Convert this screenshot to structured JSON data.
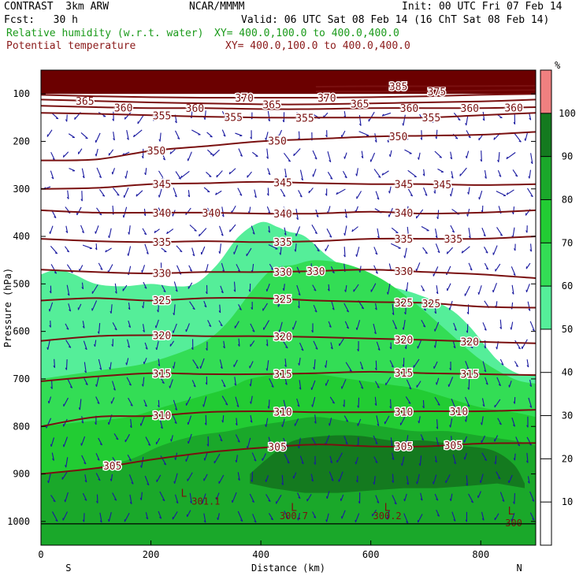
{
  "header": {
    "model": "CONTRAST  3km ARW",
    "org": "NCAR/MMMM",
    "init": "Init: 00 UTC Fri 07 Feb 14",
    "fcst": "Fcst:   30 h",
    "valid": "Valid: 06 UTC Sat 08 Feb 14 (16 ChT Sat 08 Feb 14)",
    "field1": "Relative humidity (w.r.t. water)",
    "xy1": "XY= 400.0,100.0 to 400.0,400.0",
    "field2": "Potential temperature",
    "xy2": "XY= 400.0,100.0 to 400.0,400.0"
  },
  "colors": {
    "rh_50": "#55ee99",
    "rh_60": "#33dd55",
    "rh_70": "#22cc33",
    "rh_80": "#1aa82a",
    "rh_90": "#147a1f",
    "rh_100": "#f08080",
    "theta": "#7a1010",
    "wind": "#1a1aa0"
  },
  "chart_data": {
    "type": "cross-section",
    "xlabel": "Distance (km)",
    "ylabel": "Pressure (hPa)",
    "xlim": [
      0,
      900
    ],
    "ylim": [
      1050,
      50
    ],
    "x_ticks": [
      0,
      200,
      400,
      600,
      800
    ],
    "y_ticks": [
      100,
      200,
      300,
      400,
      500,
      600,
      700,
      800,
      900,
      1000
    ],
    "x_end_labels": {
      "left": "S",
      "right": "N"
    },
    "colorbar": {
      "unit": "%",
      "ticks": [
        10,
        20,
        30,
        40,
        50,
        60,
        70,
        80,
        90,
        100
      ],
      "filled_levels": [
        {
          "from": 50,
          "to": 60,
          "color_key": "rh_50"
        },
        {
          "from": 60,
          "to": 70,
          "color_key": "rh_60"
        },
        {
          "from": 70,
          "to": 80,
          "color_key": "rh_70"
        },
        {
          "from": 80,
          "to": 90,
          "color_key": "rh_80"
        },
        {
          "from": 90,
          "to": 100,
          "color_key": "rh_90"
        },
        {
          "from": 100,
          "to": 110,
          "color_key": "rh_100"
        }
      ]
    },
    "rh_boundary": {
      "rh50_top": [
        [
          0,
          480
        ],
        [
          30,
          470
        ],
        [
          60,
          480
        ],
        [
          100,
          500
        ],
        [
          150,
          505
        ],
        [
          200,
          500
        ],
        [
          240,
          505
        ],
        [
          280,
          500
        ],
        [
          320,
          460
        ],
        [
          360,
          400
        ],
        [
          400,
          370
        ],
        [
          430,
          380
        ],
        [
          450,
          390
        ],
        [
          480,
          400
        ],
        [
          520,
          440
        ],
        [
          560,
          470
        ],
        [
          620,
          500
        ],
        [
          680,
          520
        ],
        [
          740,
          550
        ],
        [
          780,
          590
        ],
        [
          830,
          660
        ],
        [
          870,
          690
        ],
        [
          900,
          690
        ]
      ],
      "rh60_top": [
        [
          0,
          700
        ],
        [
          60,
          690
        ],
        [
          120,
          680
        ],
        [
          180,
          670
        ],
        [
          240,
          650
        ],
        [
          300,
          620
        ],
        [
          340,
          580
        ],
        [
          380,
          520
        ],
        [
          420,
          470
        ],
        [
          460,
          460
        ],
        [
          500,
          450
        ],
        [
          560,
          460
        ],
        [
          620,
          490
        ],
        [
          680,
          540
        ],
        [
          740,
          600
        ],
        [
          800,
          660
        ],
        [
          860,
          700
        ],
        [
          900,
          710
        ]
      ],
      "rh70_top": [
        [
          0,
          800
        ],
        [
          80,
          790
        ],
        [
          160,
          780
        ],
        [
          220,
          760
        ],
        [
          280,
          740
        ],
        [
          340,
          720
        ],
        [
          380,
          700
        ],
        [
          440,
          690
        ],
        [
          500,
          690
        ],
        [
          560,
          700
        ],
        [
          620,
          710
        ],
        [
          680,
          720
        ],
        [
          740,
          740
        ],
        [
          800,
          760
        ],
        [
          860,
          770
        ],
        [
          900,
          780
        ]
      ],
      "rh80_top": [
        [
          0,
          900
        ],
        [
          80,
          890
        ],
        [
          160,
          870
        ],
        [
          220,
          840
        ],
        [
          280,
          820
        ],
        [
          340,
          810
        ],
        [
          380,
          800
        ],
        [
          440,
          790
        ],
        [
          500,
          780
        ],
        [
          560,
          790
        ],
        [
          620,
          800
        ],
        [
          680,
          810
        ],
        [
          740,
          810
        ],
        [
          800,
          820
        ],
        [
          860,
          830
        ],
        [
          900,
          840
        ]
      ],
      "rh90_top": [
        [
          380,
          900
        ],
        [
          420,
          860
        ],
        [
          460,
          830
        ],
        [
          520,
          820
        ],
        [
          580,
          820
        ],
        [
          640,
          830
        ],
        [
          700,
          830
        ],
        [
          760,
          840
        ],
        [
          820,
          850
        ],
        [
          860,
          880
        ],
        [
          880,
          920
        ]
      ],
      "rh90_bottom": [
        [
          380,
          920
        ],
        [
          420,
          930
        ],
        [
          480,
          940
        ],
        [
          540,
          940
        ],
        [
          600,
          935
        ],
        [
          660,
          930
        ],
        [
          720,
          930
        ],
        [
          780,
          925
        ],
        [
          830,
          920
        ],
        [
          880,
          930
        ]
      ],
      "rh100_top_hpa": 60
    },
    "theta_contours": [
      {
        "label": "305",
        "points": [
          [
            0,
            900
          ],
          [
            100,
            888
          ],
          [
            200,
            870
          ],
          [
            300,
            855
          ],
          [
            400,
            845
          ],
          [
            500,
            838
          ],
          [
            600,
            842
          ],
          [
            700,
            842
          ],
          [
            800,
            836
          ],
          [
            900,
            835
          ]
        ],
        "labels_at": [
          130,
          430,
          660,
          750
        ]
      },
      {
        "label": "310",
        "points": [
          [
            0,
            800
          ],
          [
            100,
            780
          ],
          [
            200,
            778
          ],
          [
            300,
            770
          ],
          [
            400,
            768
          ],
          [
            500,
            770
          ],
          [
            600,
            770
          ],
          [
            700,
            768
          ],
          [
            800,
            768
          ],
          [
            900,
            765
          ]
        ],
        "labels_at": [
          220,
          440,
          660,
          760
        ]
      },
      {
        "label": "315",
        "points": [
          [
            0,
            705
          ],
          [
            100,
            695
          ],
          [
            200,
            688
          ],
          [
            300,
            690
          ],
          [
            400,
            690
          ],
          [
            500,
            688
          ],
          [
            600,
            685
          ],
          [
            700,
            688
          ],
          [
            800,
            690
          ],
          [
            900,
            692
          ]
        ],
        "labels_at": [
          220,
          440,
          660,
          780
        ]
      },
      {
        "label": "320",
        "points": [
          [
            0,
            620
          ],
          [
            100,
            610
          ],
          [
            200,
            608
          ],
          [
            300,
            610
          ],
          [
            400,
            610
          ],
          [
            500,
            612
          ],
          [
            600,
            615
          ],
          [
            700,
            618
          ],
          [
            800,
            622
          ],
          [
            900,
            625
          ]
        ],
        "labels_at": [
          220,
          440,
          660,
          780
        ]
      },
      {
        "label": "325",
        "points": [
          [
            0,
            535
          ],
          [
            100,
            530
          ],
          [
            200,
            535
          ],
          [
            300,
            530
          ],
          [
            400,
            530
          ],
          [
            500,
            535
          ],
          [
            600,
            538
          ],
          [
            700,
            540
          ],
          [
            800,
            548
          ],
          [
            900,
            550
          ]
        ],
        "labels_at": [
          220,
          440,
          660,
          710
        ]
      },
      {
        "label": "330",
        "points": [
          [
            0,
            470
          ],
          [
            100,
            475
          ],
          [
            200,
            478
          ],
          [
            300,
            475
          ],
          [
            400,
            475
          ],
          [
            500,
            473
          ],
          [
            600,
            470
          ],
          [
            700,
            475
          ],
          [
            800,
            480
          ],
          [
            900,
            488
          ]
        ],
        "labels_at": [
          220,
          440,
          500,
          660
        ]
      },
      {
        "label": "335",
        "points": [
          [
            0,
            405
          ],
          [
            100,
            410
          ],
          [
            200,
            412
          ],
          [
            300,
            410
          ],
          [
            400,
            412
          ],
          [
            500,
            410
          ],
          [
            600,
            405
          ],
          [
            700,
            405
          ],
          [
            800,
            405
          ],
          [
            900,
            400
          ]
        ],
        "labels_at": [
          220,
          440,
          660,
          750
        ]
      },
      {
        "label": "340",
        "points": [
          [
            0,
            345
          ],
          [
            100,
            350
          ],
          [
            200,
            350
          ],
          [
            300,
            350
          ],
          [
            400,
            352
          ],
          [
            500,
            352
          ],
          [
            600,
            348
          ],
          [
            700,
            352
          ],
          [
            800,
            350
          ],
          [
            900,
            345
          ]
        ],
        "labels_at": [
          220,
          310,
          440,
          660
        ]
      },
      {
        "label": "345",
        "points": [
          [
            0,
            300
          ],
          [
            100,
            298
          ],
          [
            200,
            290
          ],
          [
            300,
            288
          ],
          [
            400,
            285
          ],
          [
            500,
            288
          ],
          [
            600,
            290
          ],
          [
            700,
            290
          ],
          [
            800,
            292
          ],
          [
            900,
            290
          ]
        ],
        "labels_at": [
          220,
          440,
          660,
          730
        ]
      },
      {
        "label": "350",
        "points": [
          [
            0,
            240
          ],
          [
            100,
            238
          ],
          [
            200,
            220
          ],
          [
            300,
            210
          ],
          [
            400,
            200
          ],
          [
            500,
            195
          ],
          [
            600,
            190
          ],
          [
            700,
            188
          ],
          [
            800,
            186
          ],
          [
            900,
            180
          ]
        ],
        "labels_at": [
          210,
          430,
          650
        ]
      },
      {
        "label": "355",
        "points": [
          [
            0,
            140
          ],
          [
            100,
            142
          ],
          [
            200,
            145
          ],
          [
            300,
            148
          ],
          [
            400,
            150
          ],
          [
            500,
            150
          ],
          [
            600,
            150
          ],
          [
            700,
            150
          ],
          [
            800,
            145
          ],
          [
            900,
            140
          ]
        ],
        "labels_at": [
          220,
          350,
          480,
          710
        ]
      },
      {
        "label": "360",
        "points": [
          [
            0,
            125
          ],
          [
            100,
            128
          ],
          [
            200,
            130
          ],
          [
            300,
            130
          ],
          [
            400,
            132
          ],
          [
            500,
            132
          ],
          [
            600,
            130
          ],
          [
            700,
            130
          ],
          [
            800,
            130
          ],
          [
            900,
            128
          ]
        ],
        "labels_at": [
          150,
          280,
          670,
          780,
          860
        ]
      },
      {
        "label": "365",
        "points": [
          [
            0,
            112
          ],
          [
            100,
            115
          ],
          [
            200,
            118
          ],
          [
            300,
            120
          ],
          [
            400,
            122
          ],
          [
            500,
            122
          ],
          [
            600,
            120
          ],
          [
            700,
            118
          ],
          [
            800,
            116
          ],
          [
            900,
            112
          ]
        ],
        "labels_at": [
          80,
          420,
          580
        ]
      },
      {
        "label": "370",
        "points": [
          [
            0,
            102
          ],
          [
            100,
            105
          ],
          [
            200,
            107
          ],
          [
            300,
            108
          ],
          [
            400,
            108
          ],
          [
            500,
            108
          ],
          [
            600,
            107
          ],
          [
            700,
            105
          ],
          [
            800,
            102
          ],
          [
            900,
            100
          ]
        ],
        "labels_at": [
          370,
          520
        ]
      },
      {
        "label": "375",
        "points": [
          [
            500,
            95
          ],
          [
            600,
            95
          ],
          [
            700,
            95
          ],
          [
            800,
            93
          ],
          [
            900,
            92
          ]
        ],
        "labels_at": [
          720
        ]
      },
      {
        "label": "385",
        "points": [
          [
            500,
            85
          ],
          [
            600,
            84
          ],
          [
            700,
            84
          ],
          [
            900,
            83
          ]
        ],
        "labels_at": [
          650
        ]
      }
    ],
    "surface_labels": [
      {
        "x": 300,
        "p": 965,
        "text": "301.1"
      },
      {
        "x": 460,
        "p": 995,
        "text": "300.7"
      },
      {
        "x": 630,
        "p": 995,
        "text": "300.2"
      },
      {
        "x": 860,
        "p": 1010,
        "text": "300"
      }
    ],
    "low_markers": [
      {
        "x": 260,
        "p": 948,
        "text": "L"
      },
      {
        "x": 460,
        "p": 978,
        "text": "L"
      },
      {
        "x": 630,
        "p": 978,
        "text": "L"
      },
      {
        "x": 855,
        "p": 985,
        "text": "L"
      }
    ]
  }
}
